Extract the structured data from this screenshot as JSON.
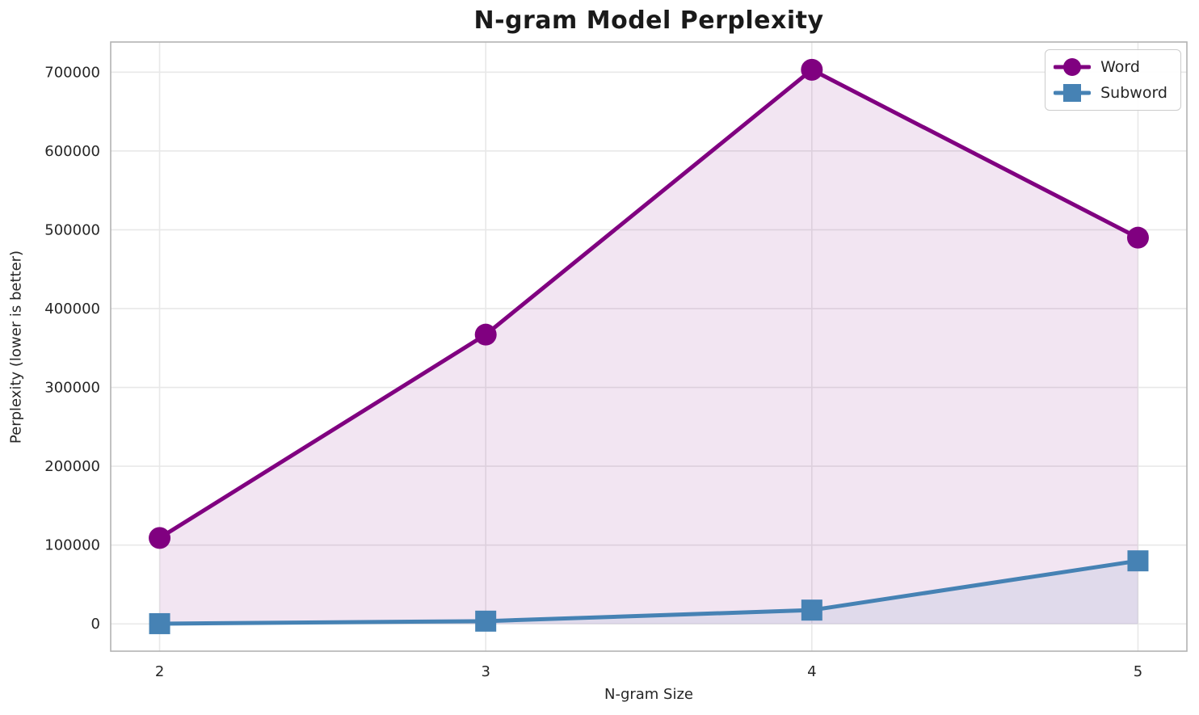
{
  "chart_data": {
    "type": "line",
    "title": "N-gram Model Perplexity",
    "xlabel": "N-gram Size",
    "ylabel": "Perplexity (lower is better)",
    "x": [
      2,
      3,
      4,
      5
    ],
    "series": [
      {
        "name": "Word",
        "color": "#800080",
        "marker": "circle",
        "values": [
          109000,
          367000,
          703000,
          490000
        ],
        "fill_alpha": 0.1
      },
      {
        "name": "Subword",
        "color": "#4682b4",
        "marker": "square",
        "values": [
          300,
          3500,
          17500,
          80000
        ],
        "fill_alpha": 0.1
      }
    ],
    "x_ticks": [
      "2",
      "3",
      "4",
      "5"
    ],
    "x_tick_values": [
      2,
      3,
      4,
      5
    ],
    "y_ticks": [
      "0",
      "100000",
      "200000",
      "300000",
      "400000",
      "500000",
      "600000",
      "700000"
    ],
    "y_tick_values": [
      0,
      100000,
      200000,
      300000,
      400000,
      500000,
      600000,
      700000
    ],
    "xlim": [
      1.85,
      5.15
    ],
    "ylim": [
      -34600,
      738200
    ],
    "fill_baseline": 0,
    "grid": true,
    "legend_position": "upper right",
    "colors": {
      "grid": "#e8e8e8",
      "spine": "#b3b3b3",
      "tick_text": "#262626",
      "background": "#ffffff"
    }
  }
}
